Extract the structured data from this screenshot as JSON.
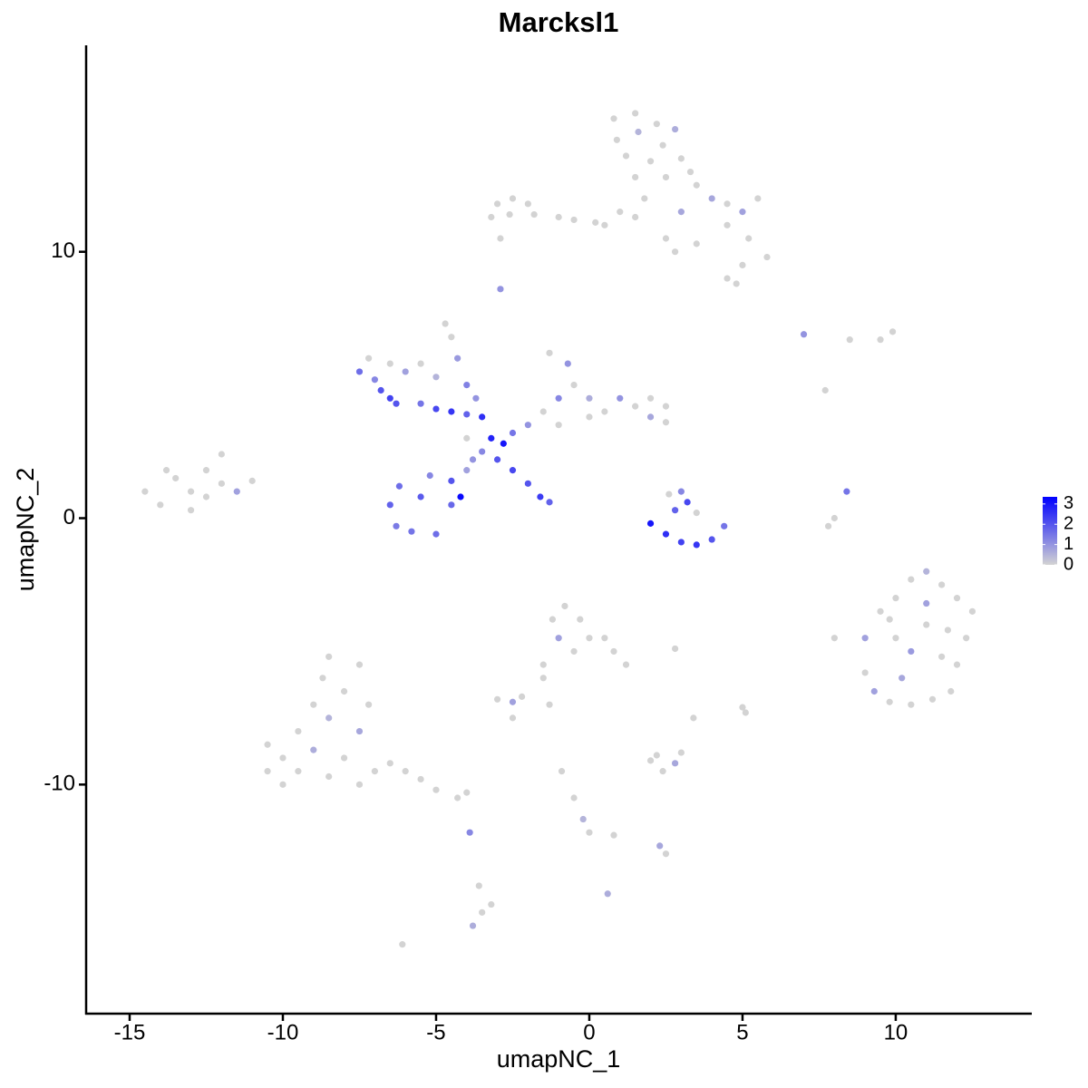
{
  "chart_data": {
    "type": "scatter",
    "title": "Marcksl1",
    "x_label": "umapNC_1",
    "y_label": "umapNC_2",
    "xlim": [
      -16.42,
      14.44
    ],
    "ylim": [
      -18.6,
      17.75
    ],
    "xticks": [
      -15,
      -10,
      -5,
      0,
      5,
      10
    ],
    "yticks": [
      -10,
      0,
      10
    ],
    "color_scale": {
      "low": "#d3d3d3",
      "high": "#0000ff",
      "lim": [
        0,
        3.35
      ],
      "ticks": [
        0,
        1,
        2,
        3
      ]
    },
    "x": [
      -14.5,
      -14,
      -13.5,
      -13,
      -13,
      -12.5,
      -12.5,
      -12,
      -12,
      -11.5,
      -11,
      -13.8,
      0.8,
      1.5,
      2.2,
      0.9,
      1.6,
      2.4,
      2.8,
      1.2,
      2.0,
      3.0,
      1.5,
      2.5,
      3.3,
      3.5,
      4.0,
      4.5,
      5.0,
      5.5,
      4.5,
      5.2,
      5.8,
      5.0,
      4.5,
      4.8,
      3.5,
      2.5,
      1.5,
      1.0,
      3.0,
      1.8,
      -3.0,
      -2.5,
      -2.0,
      -3.2,
      -2.6,
      -1.8,
      -1.0,
      -0.5,
      0.2,
      0.5,
      -2.9,
      -2.9,
      2.8,
      -4.7,
      -7.5,
      -7.0,
      -6.8,
      -6.5,
      -7.2,
      -6.5,
      -6,
      -5.5,
      -5,
      -6.3,
      -5.5,
      -5,
      -4.5,
      -4,
      -3.5,
      -3.2,
      -2.8,
      -3,
      -3.5,
      -2.5,
      -4,
      -4.5,
      -4.3,
      -4.0,
      -3.7,
      -6.2,
      -6.5,
      -6.3,
      -5.8,
      -5,
      -4.5,
      -4.5,
      -5.2,
      -5.5,
      -4.2,
      -4.0,
      -3.8,
      -2.5,
      -2.0,
      -1.6,
      -1.3,
      -2,
      -1.5,
      -1,
      -1.3,
      -0.7,
      -0.5,
      0,
      0.5,
      1,
      1.5,
      2,
      2.5,
      2.5,
      2,
      -1,
      0,
      2,
      2.5,
      3,
      3.5,
      4,
      4.4,
      2.8,
      3.2,
      3.0,
      3.5,
      2.6,
      8.4,
      8.0,
      7.8,
      7,
      7.7,
      9.5,
      9.9,
      8.5,
      9,
      9.5,
      10,
      10.5,
      11,
      11.5,
      12,
      12.5,
      12.3,
      12,
      11.8,
      11.2,
      10.5,
      9.8,
      9.3,
      9,
      10,
      10.5,
      11,
      11.5,
      10.2,
      11,
      9.8,
      11.7,
      8.0,
      -10.5,
      -10.5,
      -10,
      -9.5,
      -9.0,
      -8.7,
      -8.5,
      -8,
      -7.5,
      -7.2,
      -7.5,
      -8,
      -8.5,
      -9,
      -9.5,
      -7,
      -7.5,
      -6.5,
      -6,
      -5.5,
      -5,
      -4.3,
      -4,
      -8.5,
      -10,
      -1.2,
      -0.8,
      -0.3,
      -1.0,
      0,
      0.5,
      0.8,
      1.2,
      -0.5,
      -1.5,
      -1.5,
      -3,
      -2.5,
      -2.2,
      -2.5,
      -1.3,
      2.8,
      3.4,
      5.1,
      5,
      2,
      2.4,
      2.8,
      3.0,
      2.2,
      -0.9,
      -0.5,
      -0.2,
      0,
      0.8,
      2.5,
      2.3,
      -3.9,
      -3.6,
      -3.5,
      -3.8,
      -3.2,
      0.6,
      -6.1
    ],
    "y": [
      1.0,
      0.5,
      1.5,
      1.0,
      0.3,
      1.8,
      0.8,
      1.3,
      2.4,
      1.0,
      1.4,
      1.8,
      15,
      15.2,
      14.8,
      14.2,
      14.5,
      14.0,
      14.6,
      13.6,
      13.4,
      13.5,
      12.8,
      12.8,
      13.0,
      12.5,
      12.0,
      11.8,
      11.5,
      12.0,
      11.0,
      10.5,
      9.8,
      9.5,
      9.0,
      8.8,
      10.3,
      10.5,
      11.3,
      11.5,
      11.5,
      12.0,
      11.8,
      12.0,
      11.8,
      11.3,
      11.4,
      11.4,
      11.3,
      11.2,
      11.1,
      11.0,
      10.5,
      8.6,
      10.0,
      7.3,
      5.5,
      5.2,
      4.8,
      4.5,
      6.0,
      5.8,
      5.5,
      5.8,
      5.3,
      4.3,
      4.3,
      4.1,
      4,
      3.9,
      3.8,
      3.0,
      2.8,
      2.2,
      2.5,
      3.2,
      3,
      6.8,
      6,
      5,
      4.5,
      1.2,
      0.5,
      -0.3,
      -0.5,
      -0.6,
      0.5,
      1.4,
      1.6,
      0.8,
      0.8,
      1.8,
      2.2,
      1.8,
      1.3,
      0.8,
      0.6,
      3.5,
      4,
      4.5,
      6.2,
      5.8,
      5,
      4.5,
      4.0,
      4.5,
      4.2,
      4.5,
      4.2,
      3.6,
      3.8,
      3.5,
      3.8,
      -0.2,
      -0.6,
      -0.9,
      -1.0,
      -0.8,
      -0.3,
      0.3,
      0.6,
      1.0,
      0.2,
      0.9,
      1.0,
      0,
      -0.3,
      6.9,
      4.8,
      6.7,
      7,
      6.7,
      -4.5,
      -3.5,
      -3,
      -2.3,
      -2,
      -2.5,
      -3,
      -3.5,
      -4.5,
      -5.5,
      -6.5,
      -6.8,
      -7,
      -6.9,
      -6.5,
      -5.8,
      -4.5,
      -5,
      -4,
      -5.2,
      -6,
      -3.2,
      -3.8,
      -4.2,
      -4.5,
      -8.5,
      -9.5,
      -10,
      -8,
      -7,
      -6,
      -5.2,
      -6.5,
      -5.5,
      -7,
      -8,
      -9,
      -9.7,
      -8.7,
      -9.5,
      -9.5,
      -10,
      -9.2,
      -9.5,
      -9.8,
      -10.2,
      -10.5,
      -10.3,
      -7.5,
      -9,
      -3.8,
      -3.3,
      -3.8,
      -4.5,
      -4.5,
      -4.5,
      -5,
      -5.5,
      -5,
      -5.5,
      -6,
      -6.8,
      -6.9,
      -6.7,
      -7.5,
      -7.0,
      -4.9,
      -7.5,
      -7.3,
      -7.1,
      -9.1,
      -9.5,
      -9.2,
      -8.8,
      -8.9,
      -9.5,
      -10.5,
      -11.3,
      -11.8,
      -11.9,
      -12.6,
      -12.3,
      -11.8,
      -13.8,
      -14.8,
      -15.3,
      -14.5,
      -14.1,
      -16
    ],
    "expression": [
      0,
      0,
      0,
      0,
      0,
      0,
      0,
      0,
      0,
      0.8,
      0,
      0,
      0,
      0,
      0,
      0,
      0.5,
      0,
      0.6,
      0,
      0,
      0,
      0,
      0,
      0,
      0,
      0.7,
      0,
      0.8,
      0,
      0,
      0,
      0,
      0,
      0,
      0,
      0,
      0,
      0,
      0,
      0.7,
      0,
      0,
      0,
      0,
      0,
      0,
      0,
      0,
      0,
      0,
      0,
      0,
      1.0,
      0,
      0,
      1.6,
      1.2,
      2.0,
      2.3,
      0,
      0,
      0.8,
      0,
      0.5,
      2.0,
      1.5,
      2.2,
      2.5,
      1.8,
      2.6,
      2.8,
      3.0,
      2.0,
      1.2,
      1.5,
      0,
      0,
      0.9,
      1.3,
      1.0,
      1.6,
      1.8,
      1.4,
      1.5,
      1.6,
      1.7,
      2.0,
      1.2,
      1.9,
      3.2,
      0.8,
      1.0,
      2.2,
      2.0,
      2.4,
      1.8,
      1.0,
      0,
      1.2,
      0,
      1.0,
      0,
      0.6,
      0,
      1.0,
      0,
      0,
      0,
      0,
      0.7,
      0,
      0,
      3.0,
      2.6,
      2.3,
      2.5,
      2.0,
      1.5,
      1.8,
      2.2,
      1.2,
      0,
      0,
      1.5,
      0,
      0,
      1.0,
      0,
      0,
      0,
      0,
      0.8,
      0,
      0,
      0,
      0.5,
      0,
      0,
      0,
      0,
      0,
      0,
      0,
      0,
      0,
      0.8,
      0,
      0,
      0.9,
      0,
      0,
      0.7,
      0.8,
      0,
      0,
      0,
      0,
      0,
      0,
      0,
      0,
      0,
      0,
      0,
      0,
      0,
      0.7,
      0,
      0,
      0.6,
      0,
      0,
      0,
      0,
      0,
      0,
      0,
      0,
      0,
      0.5,
      0,
      0,
      0,
      0,
      0.8,
      0,
      0,
      0,
      0,
      0,
      0,
      0,
      0,
      0.8,
      0,
      0,
      0,
      0,
      0,
      0,
      0,
      0,
      0,
      0.7,
      0,
      0,
      0,
      0,
      0.5,
      0,
      0,
      0,
      0.7,
      1.2,
      0,
      0,
      0.6,
      0,
      0.6,
      0
    ]
  }
}
